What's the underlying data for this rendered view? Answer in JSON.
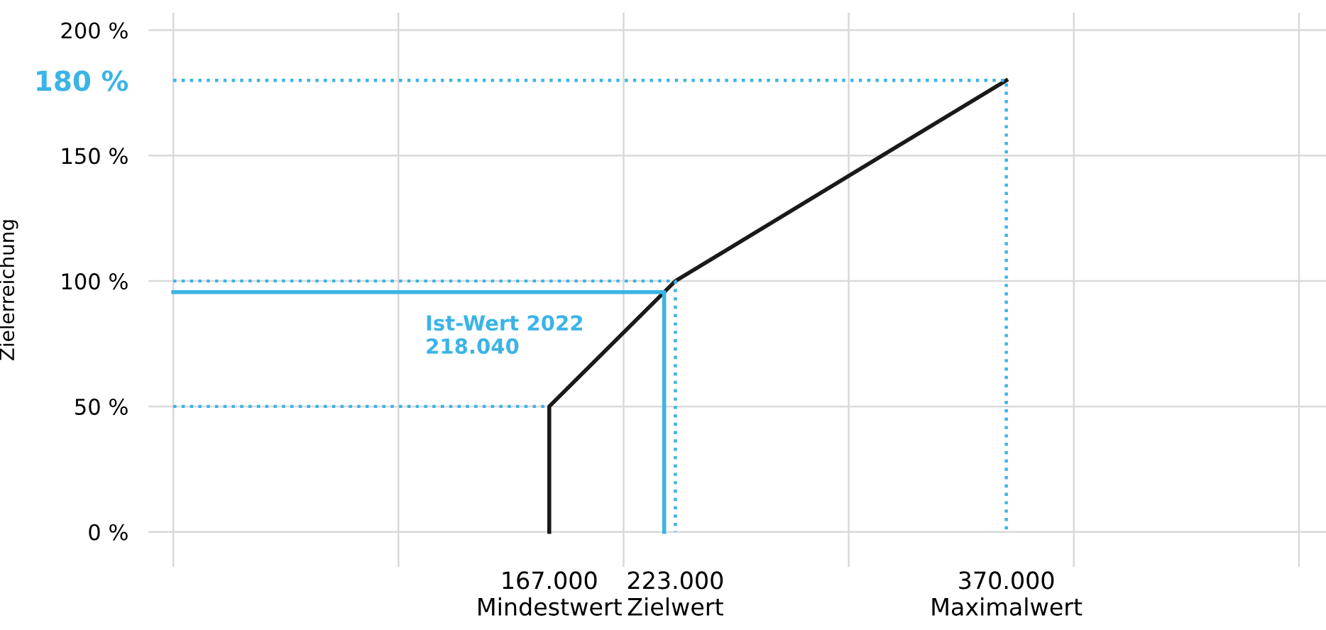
{
  "chart_data": {
    "type": "line",
    "ylabel": "Zielerreichung",
    "xlim": [
      -11000,
      512000
    ],
    "ylim": [
      -14,
      207
    ],
    "xticks": [
      {
        "value": 0,
        "label": null
      },
      {
        "value": 100000,
        "label": null
      },
      {
        "value": 200000,
        "label": null
      },
      {
        "value": 300000,
        "label": null
      },
      {
        "value": 400000,
        "label": null
      },
      {
        "value": 500000,
        "label": null
      },
      {
        "value": 167000,
        "label": "167.000\nMindestwert"
      },
      {
        "value": 223000,
        "label": "223.000\nZielwert"
      },
      {
        "value": 370000,
        "label": "370.000\nMaximalwert"
      }
    ],
    "yticks": [
      {
        "value": 0,
        "label": "0 %"
      },
      {
        "value": 50,
        "label": "50 %"
      },
      {
        "value": 100,
        "label": "100 %"
      },
      {
        "value": 150,
        "label": "150 %"
      },
      {
        "value": 180,
        "label": "180 %"
      },
      {
        "value": 200,
        "label": "200 %"
      }
    ],
    "grid": true,
    "tick_labels": "xy",
    "series": [
      {
        "x": [
          167000,
          167000,
          223000,
          370000
        ],
        "values": [
          0,
          50,
          100,
          180
        ],
        "color": "#1a1a1a",
        "line_style": "solid"
      },
      {
        "x": [
          0,
          167000
        ],
        "values": [
          50,
          50
        ],
        "color": "#3bb4e6",
        "line_style": "dotted"
      },
      {
        "x": [
          0,
          223000,
          223000
        ],
        "values": [
          100,
          100,
          0
        ],
        "color": "#3bb4e6",
        "line_style": "dotted"
      },
      {
        "x": [
          0,
          370000,
          370000
        ],
        "values": [
          180,
          180,
          0
        ],
        "color": "#3bb4e6",
        "line_style": "dotted"
      },
      {
        "x": [
          0,
          218040,
          218040
        ],
        "values": [
          95.6,
          95.6,
          0
        ],
        "color": "#3bb4e6",
        "line_style": "solid"
      }
    ],
    "annotations": [
      "Ist-Wert 2022\n218.040"
    ]
  }
}
